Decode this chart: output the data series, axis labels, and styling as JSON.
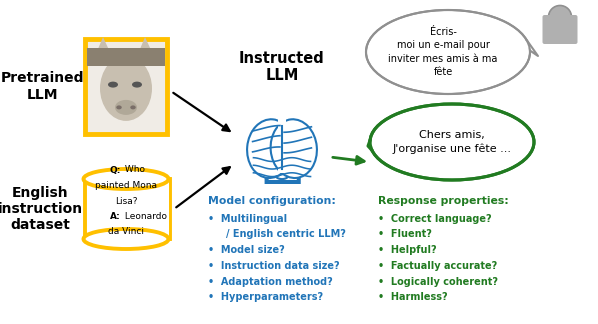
{
  "bg_color": "#ffffff",
  "gold_color": "#FFC000",
  "blue_color": "#2175B8",
  "green_color": "#217B21",
  "gray_color": "#909090",
  "pretrained_llm_label": "Pretrained\nLLM",
  "english_dataset_label": "English\ninstruction\ndataset",
  "instructed_llm_label": "Instructed\nLLM",
  "dataset_q_bold": "Q:",
  "dataset_q_rest": " Who\npainted Mona\nLisa?",
  "dataset_a_bold": "A:",
  "dataset_a_rest": " Leonardo\nda Vinci",
  "user_bubble_text": "Écris-\nmoi un e-mail pour\ninviter mes amis à ma\nfête",
  "response_bubble_text": "Chers amis,\nJ'organise une fête ...",
  "model_config_title": "Model configuration:",
  "model_config_items": [
    "Multilingual",
    "/ English centric LLM?",
    "Model size?",
    "Instruction data size?",
    "Adaptation method?",
    "Hyperparameters?"
  ],
  "model_config_bullets": [
    true,
    false,
    true,
    true,
    true,
    true
  ],
  "response_props_title": "Response properties:",
  "response_props_items": [
    "Correct language?",
    "Fluent?",
    "Helpful?",
    "Factually accurate?",
    "Logically coherent?",
    "Harmless?"
  ]
}
